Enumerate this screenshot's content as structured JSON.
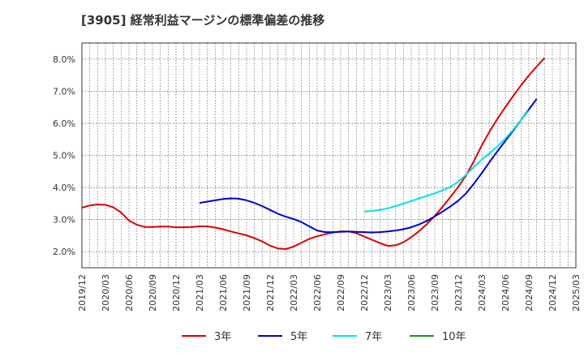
{
  "chart_data": {
    "type": "line",
    "title": "[3905]  経常利益マージンの標準偏差の推移",
    "xlabel": "",
    "ylabel": "",
    "x_ticks": [
      "2019/12",
      "2020/03",
      "2020/06",
      "2020/09",
      "2020/12",
      "2021/03",
      "2021/06",
      "2021/09",
      "2021/12",
      "2022/03",
      "2022/06",
      "2022/09",
      "2022/12",
      "2023/03",
      "2023/06",
      "2023/09",
      "2023/12",
      "2024/03",
      "2024/06",
      "2024/09",
      "2024/12",
      "2025/03"
    ],
    "x_range": [
      "2019/12",
      "2025/03"
    ],
    "y_ticks": [
      2.0,
      3.0,
      4.0,
      5.0,
      6.0,
      7.0,
      8.0
    ],
    "y_tick_labels": [
      "2.0%",
      "3.0%",
      "4.0%",
      "5.0%",
      "6.0%",
      "7.0%",
      "8.0%"
    ],
    "ylim": [
      1.5,
      8.5
    ],
    "grid": true,
    "legend_position": "bottom",
    "series": [
      {
        "name": "3年",
        "color": "#dd0000",
        "points": [
          [
            "2019/12",
            3.37
          ],
          [
            "2020/01",
            3.44
          ],
          [
            "2020/02",
            3.47
          ],
          [
            "2020/03",
            3.46
          ],
          [
            "2020/04",
            3.38
          ],
          [
            "2020/05",
            3.22
          ],
          [
            "2020/06",
            2.97
          ],
          [
            "2020/07",
            2.84
          ],
          [
            "2020/08",
            2.77
          ],
          [
            "2020/09",
            2.77
          ],
          [
            "2020/10",
            2.78
          ],
          [
            "2020/11",
            2.78
          ],
          [
            "2020/12",
            2.76
          ],
          [
            "2021/01",
            2.76
          ],
          [
            "2021/02",
            2.77
          ],
          [
            "2021/03",
            2.79
          ],
          [
            "2021/04",
            2.79
          ],
          [
            "2021/05",
            2.75
          ],
          [
            "2021/06",
            2.7
          ],
          [
            "2021/07",
            2.63
          ],
          [
            "2021/08",
            2.57
          ],
          [
            "2021/09",
            2.51
          ],
          [
            "2021/10",
            2.42
          ],
          [
            "2021/11",
            2.32
          ],
          [
            "2021/12",
            2.19
          ],
          [
            "2022/01",
            2.1
          ],
          [
            "2022/02",
            2.08
          ],
          [
            "2022/03",
            2.16
          ],
          [
            "2022/04",
            2.28
          ],
          [
            "2022/05",
            2.4
          ],
          [
            "2022/06",
            2.48
          ],
          [
            "2022/07",
            2.54
          ],
          [
            "2022/08",
            2.6
          ],
          [
            "2022/09",
            2.63
          ],
          [
            "2022/10",
            2.63
          ],
          [
            "2022/11",
            2.58
          ],
          [
            "2022/12",
            2.47
          ],
          [
            "2023/01",
            2.37
          ],
          [
            "2023/02",
            2.27
          ],
          [
            "2023/03",
            2.18
          ],
          [
            "2023/04",
            2.2
          ],
          [
            "2023/05",
            2.29
          ],
          [
            "2023/06",
            2.45
          ],
          [
            "2023/07",
            2.64
          ],
          [
            "2023/08",
            2.86
          ],
          [
            "2023/09",
            3.11
          ],
          [
            "2023/10",
            3.4
          ],
          [
            "2023/11",
            3.7
          ],
          [
            "2023/12",
            4.02
          ],
          [
            "2024/01",
            4.38
          ],
          [
            "2024/02",
            4.82
          ],
          [
            "2024/03",
            5.31
          ],
          [
            "2024/04",
            5.75
          ],
          [
            "2024/05",
            6.14
          ],
          [
            "2024/06",
            6.5
          ],
          [
            "2024/07",
            6.85
          ],
          [
            "2024/08",
            7.18
          ],
          [
            "2024/09",
            7.49
          ],
          [
            "2024/10",
            7.77
          ],
          [
            "2024/11",
            8.03
          ]
        ]
      },
      {
        "name": "5年",
        "color": "#0000cc",
        "points": [
          [
            "2021/03",
            3.52
          ],
          [
            "2021/04",
            3.56
          ],
          [
            "2021/05",
            3.6
          ],
          [
            "2021/06",
            3.64
          ],
          [
            "2021/07",
            3.66
          ],
          [
            "2021/08",
            3.65
          ],
          [
            "2021/09",
            3.6
          ],
          [
            "2021/10",
            3.52
          ],
          [
            "2021/11",
            3.42
          ],
          [
            "2021/12",
            3.3
          ],
          [
            "2022/01",
            3.18
          ],
          [
            "2022/02",
            3.09
          ],
          [
            "2022/03",
            3.02
          ],
          [
            "2022/04",
            2.92
          ],
          [
            "2022/05",
            2.79
          ],
          [
            "2022/06",
            2.66
          ],
          [
            "2022/07",
            2.61
          ],
          [
            "2022/08",
            2.61
          ],
          [
            "2022/09",
            2.62
          ],
          [
            "2022/10",
            2.63
          ],
          [
            "2022/11",
            2.62
          ],
          [
            "2022/12",
            2.61
          ],
          [
            "2023/01",
            2.6
          ],
          [
            "2023/02",
            2.61
          ],
          [
            "2023/03",
            2.63
          ],
          [
            "2023/04",
            2.66
          ],
          [
            "2023/05",
            2.7
          ],
          [
            "2023/06",
            2.76
          ],
          [
            "2023/07",
            2.85
          ],
          [
            "2023/08",
            2.96
          ],
          [
            "2023/09",
            3.1
          ],
          [
            "2023/10",
            3.25
          ],
          [
            "2023/11",
            3.41
          ],
          [
            "2023/12",
            3.59
          ],
          [
            "2024/01",
            3.82
          ],
          [
            "2024/02",
            4.12
          ],
          [
            "2024/03",
            4.45
          ],
          [
            "2024/04",
            4.8
          ],
          [
            "2024/05",
            5.13
          ],
          [
            "2024/06",
            5.45
          ],
          [
            "2024/07",
            5.77
          ],
          [
            "2024/08",
            6.1
          ],
          [
            "2024/09",
            6.43
          ],
          [
            "2024/10",
            6.76
          ]
        ]
      },
      {
        "name": "7年",
        "color": "#00e5e5",
        "points": [
          [
            "2022/12",
            3.25
          ],
          [
            "2023/01",
            3.27
          ],
          [
            "2023/02",
            3.3
          ],
          [
            "2023/03",
            3.35
          ],
          [
            "2023/04",
            3.42
          ],
          [
            "2023/05",
            3.5
          ],
          [
            "2023/06",
            3.58
          ],
          [
            "2023/07",
            3.66
          ],
          [
            "2023/08",
            3.74
          ],
          [
            "2023/09",
            3.82
          ],
          [
            "2023/10",
            3.91
          ],
          [
            "2023/11",
            4.02
          ],
          [
            "2023/12",
            4.18
          ],
          [
            "2024/01",
            4.4
          ],
          [
            "2024/02",
            4.64
          ],
          [
            "2024/03",
            4.87
          ],
          [
            "2024/04",
            5.07
          ],
          [
            "2024/05",
            5.28
          ],
          [
            "2024/06",
            5.52
          ],
          [
            "2024/07",
            5.8
          ],
          [
            "2024/08",
            6.1
          ],
          [
            "2024/09",
            6.4
          ]
        ]
      },
      {
        "name": "10年",
        "color": "#228b22",
        "points": []
      }
    ]
  }
}
